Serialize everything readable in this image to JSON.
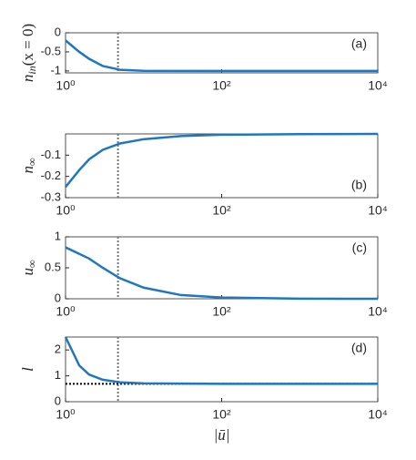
{
  "chart_data": [
    {
      "type": "line",
      "log_x": true,
      "annotation": "(a)",
      "ylabel": {
        "text": "n",
        "sub": "in",
        "after": "(x = 0)"
      },
      "x": [
        1,
        1.5,
        2,
        3,
        5,
        10,
        100,
        10000
      ],
      "series": [
        {
          "name": "n_in",
          "color": "#1f77c0",
          "values": [
            -0.2,
            -0.5,
            -0.68,
            -0.87,
            -0.97,
            -0.995,
            -1,
            -1
          ]
        }
      ],
      "vline": 4.7,
      "xlim": [
        1,
        10000
      ],
      "xticks": [
        {
          "value": 1,
          "label": "10⁰"
        },
        {
          "value": 100,
          "label": "10²"
        },
        {
          "value": 10000,
          "label": "10⁴"
        }
      ],
      "ylim": [
        -1.05,
        0
      ],
      "yticks": [
        -1,
        -0.5,
        0
      ]
    },
    {
      "type": "line",
      "log_x": true,
      "annotation": "(b)",
      "ylabel": {
        "text": "n",
        "sub": "∞"
      },
      "x": [
        1,
        1.5,
        2,
        3,
        5,
        10,
        30,
        100,
        1000,
        10000
      ],
      "series": [
        {
          "name": "n_inf",
          "color": "#1f77c0",
          "values": [
            -0.25,
            -0.17,
            -0.12,
            -0.075,
            -0.045,
            -0.025,
            -0.01,
            -0.004,
            -0.001,
            0
          ]
        }
      ],
      "vline": 4.7,
      "xlim": [
        1,
        10000
      ],
      "xticks": [
        {
          "value": 1,
          "label": "10⁰"
        },
        {
          "value": 100,
          "label": "10²"
        },
        {
          "value": 10000,
          "label": "10⁴"
        }
      ],
      "ylim": [
        -0.3,
        0
      ],
      "yticks": [
        -0.3,
        -0.2,
        -0.1
      ]
    },
    {
      "type": "line",
      "log_x": true,
      "annotation": "(c)",
      "ylabel": {
        "text": "u",
        "sub": "∞"
      },
      "x": [
        1,
        2,
        3,
        5,
        10,
        30,
        100,
        1000,
        10000
      ],
      "series": [
        {
          "name": "u_inf",
          "color": "#1f77c0",
          "values": [
            0.83,
            0.65,
            0.5,
            0.33,
            0.18,
            0.06,
            0.02,
            0.002,
            0
          ]
        }
      ],
      "vline": 4.7,
      "xlim": [
        1,
        10000
      ],
      "xticks": [
        {
          "value": 1,
          "label": "10⁰"
        },
        {
          "value": 100,
          "label": "10²"
        },
        {
          "value": 10000,
          "label": "10⁴"
        }
      ],
      "ylim": [
        0,
        1
      ],
      "yticks": [
        0,
        0.5,
        1
      ]
    },
    {
      "type": "line",
      "log_x": true,
      "annotation": "(d)",
      "ylabel": {
        "text": "l"
      },
      "xlabel": "|ū|",
      "x": [
        1,
        1.5,
        2,
        3,
        5,
        10,
        100,
        10000
      ],
      "series": [
        {
          "name": "l",
          "color": "#1f77c0",
          "values": [
            2.5,
            1.4,
            1.05,
            0.85,
            0.75,
            0.71,
            0.69,
            0.69
          ]
        }
      ],
      "vline": 4.7,
      "hline": 0.69,
      "xlim": [
        1,
        10000
      ],
      "xticks": [
        {
          "value": 1,
          "label": "10⁰"
        },
        {
          "value": 100,
          "label": "10²"
        },
        {
          "value": 10000,
          "label": "10⁴"
        }
      ],
      "ylim": [
        0,
        2.5
      ],
      "yticks": [
        0,
        1,
        2
      ]
    }
  ]
}
